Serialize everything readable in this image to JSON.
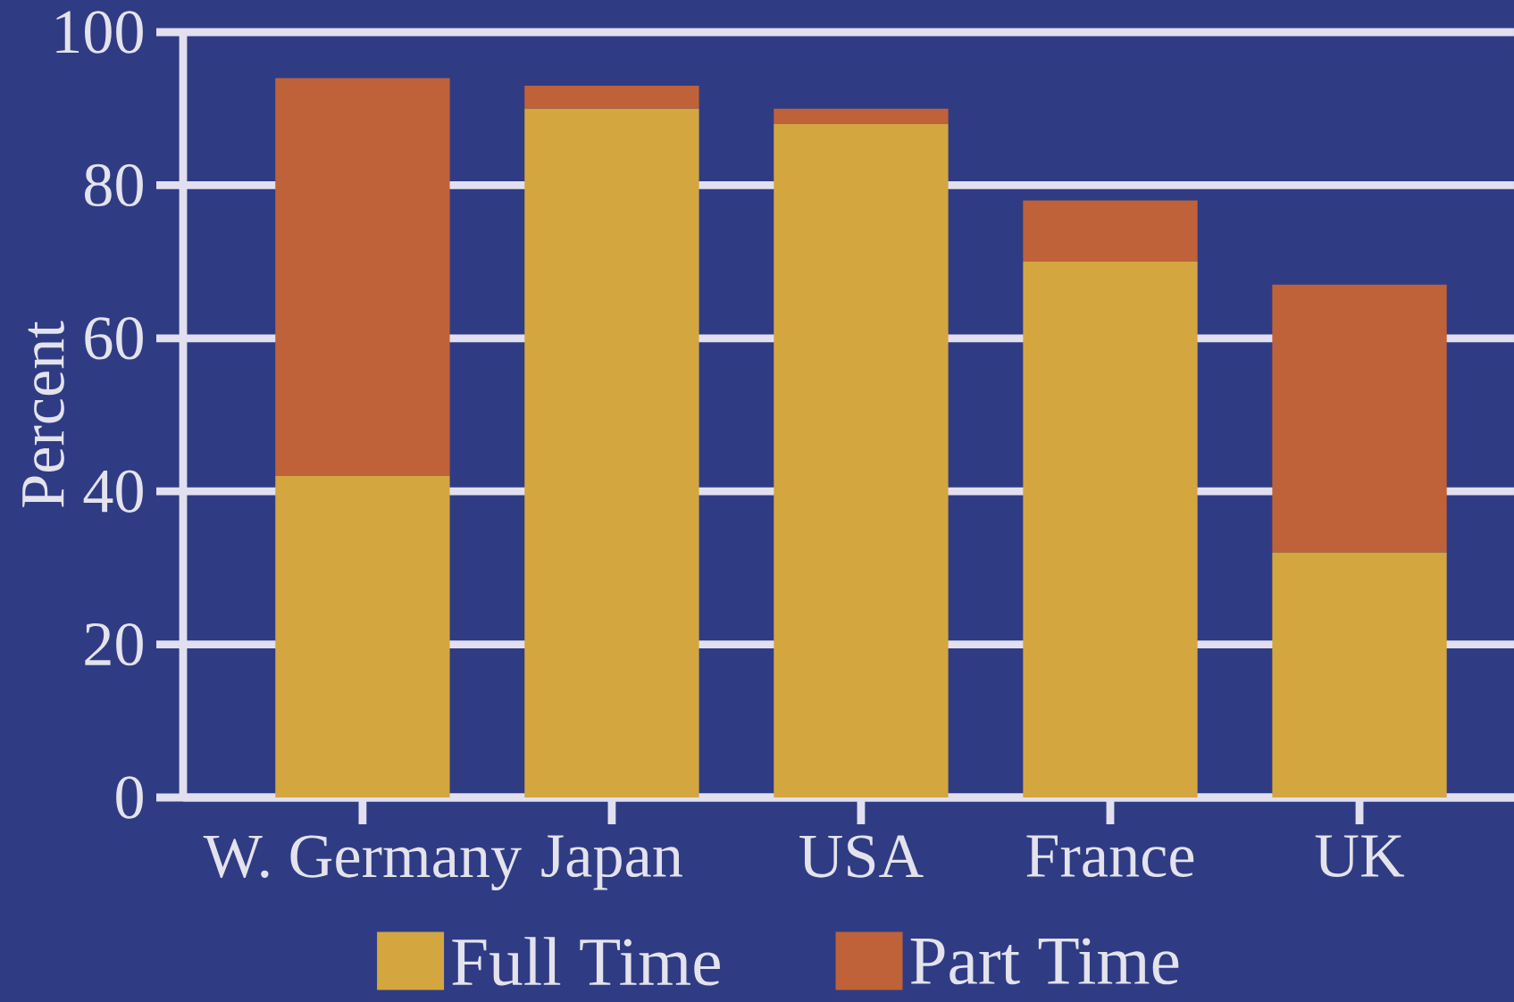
{
  "chart_data": {
    "type": "bar",
    "stacked": true,
    "ylabel": "Percent",
    "categories": [
      "W. Germany",
      "Japan",
      "USA",
      "France",
      "UK"
    ],
    "series": [
      {
        "name": "Full Time",
        "color": "#d4a640",
        "values": [
          42,
          90,
          88,
          70,
          32
        ]
      },
      {
        "name": "Part Time",
        "color": "#bf6239",
        "values": [
          52,
          3,
          2,
          8,
          35
        ]
      }
    ],
    "ylim": [
      0,
      100
    ],
    "yticks": [
      0,
      20,
      40,
      60,
      80,
      100
    ],
    "grid": "y",
    "legend": "bottom"
  }
}
